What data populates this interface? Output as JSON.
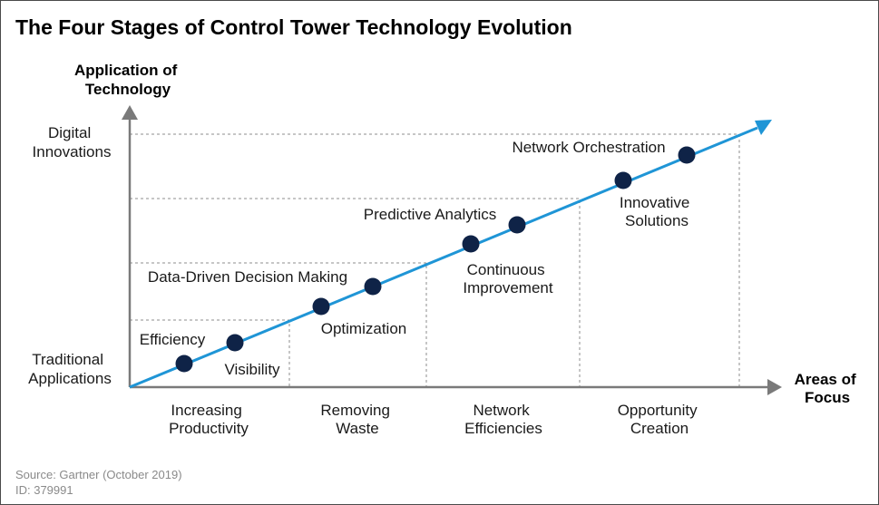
{
  "title": "The Four Stages of Control Tower Technology Evolution",
  "y_axis": {
    "title_lines": [
      "Application of",
      "Technology"
    ],
    "top_label_lines": [
      "Digital",
      "Innovations"
    ],
    "bottom_label_lines": [
      "Traditional",
      "Applications"
    ]
  },
  "x_axis": {
    "title_lines": [
      "Areas of",
      "Focus"
    ],
    "stages": [
      {
        "lines": [
          "Increasing",
          "Productivity"
        ]
      },
      {
        "lines": [
          "Removing",
          "Waste"
        ]
      },
      {
        "lines": [
          "Network",
          "Efficiencies"
        ]
      },
      {
        "lines": [
          "Opportunity",
          "Creation"
        ]
      }
    ]
  },
  "capabilities": [
    {
      "lines": [
        "Efficiency"
      ]
    },
    {
      "lines": [
        "Visibility"
      ]
    },
    {
      "lines": [
        "Optimization"
      ]
    },
    {
      "lines": [
        "Data-Driven Decision Making"
      ]
    },
    {
      "lines": [
        "Continuous",
        "Improvement"
      ]
    },
    {
      "lines": [
        "Predictive Analytics"
      ]
    },
    {
      "lines": [
        "Innovative",
        "Solutions"
      ]
    },
    {
      "lines": [
        "Network Orchestration"
      ]
    }
  ],
  "source_lines": [
    "Source: Gartner (October 2019)",
    "ID: 379991"
  ],
  "colors": {
    "trend_line": "#1f95d6",
    "dots": "#0f2347",
    "axes": "#7a7a7a",
    "guides": "#8c8c8c"
  }
}
